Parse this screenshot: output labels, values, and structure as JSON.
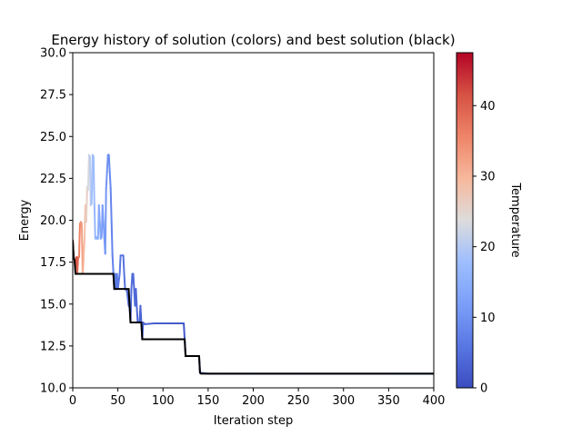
{
  "chart_data": {
    "type": "line",
    "title": "Energy history of solution (colors) and best solution (black)",
    "xlabel": "Iteration step",
    "ylabel": "Energy",
    "xlim": [
      0,
      400
    ],
    "ylim": [
      10.0,
      30.0
    ],
    "xticks": [
      "0",
      "50",
      "100",
      "150",
      "200",
      "250",
      "300",
      "350",
      "400"
    ],
    "yticks": [
      "10.0",
      "12.5",
      "15.0",
      "17.5",
      "20.0",
      "22.5",
      "25.0",
      "27.5",
      "30.0"
    ],
    "grid": false,
    "colorbar": {
      "label": "Temperature",
      "range": [
        0,
        47.5
      ],
      "ticks": [
        "0",
        "10",
        "20",
        "30",
        "40"
      ],
      "colormap": "coolwarm"
    },
    "series": [
      {
        "color_by": "Temperature",
        "points": [
          [
            0,
            18.8,
            47.5
          ],
          [
            1,
            17.8,
            46
          ],
          [
            2,
            17.6,
            44
          ],
          [
            3,
            17.2,
            43
          ],
          [
            4,
            17.8,
            42
          ],
          [
            5,
            16.8,
            40
          ],
          [
            6,
            17.8,
            38
          ],
          [
            7,
            17.8,
            37
          ],
          [
            8,
            19.8,
            35
          ],
          [
            9,
            19.9,
            34
          ],
          [
            10,
            19.8,
            33
          ],
          [
            11,
            16.8,
            32
          ],
          [
            12,
            17.8,
            30
          ],
          [
            13,
            18.8,
            29
          ],
          [
            14,
            20.9,
            28
          ],
          [
            15,
            19.9,
            27
          ],
          [
            16,
            22.0,
            25
          ],
          [
            17,
            21.8,
            24
          ],
          [
            18,
            23.9,
            22
          ],
          [
            19,
            23.8,
            21
          ],
          [
            20,
            20.9,
            20
          ],
          [
            21,
            21.0,
            19
          ],
          [
            22,
            23.9,
            18
          ],
          [
            23,
            23.8,
            18
          ],
          [
            24,
            20.9,
            17
          ],
          [
            25,
            18.9,
            16
          ],
          [
            26,
            19.0,
            16
          ],
          [
            27,
            18.9,
            15
          ],
          [
            28,
            18.9,
            15
          ],
          [
            29,
            20.9,
            14
          ],
          [
            30,
            19.9,
            14
          ],
          [
            31,
            18.9,
            13
          ],
          [
            32,
            19.0,
            13
          ],
          [
            33,
            20.9,
            12
          ],
          [
            34,
            19.9,
            12
          ],
          [
            35,
            18.9,
            11.5
          ],
          [
            36,
            18.0,
            11
          ],
          [
            37,
            21.9,
            10.5
          ],
          [
            38,
            22.9,
            10
          ],
          [
            39,
            23.9,
            9.5
          ],
          [
            40,
            23.9,
            9
          ],
          [
            41,
            22.9,
            8.7
          ],
          [
            42,
            21.9,
            8.4
          ],
          [
            43,
            19.9,
            8
          ],
          [
            44,
            17.9,
            7.7
          ],
          [
            45,
            16.9,
            7.4
          ],
          [
            46,
            15.9,
            7
          ],
          [
            47,
            16.8,
            6.8
          ],
          [
            48,
            15.9,
            6.6
          ],
          [
            49,
            16.8,
            6.4
          ],
          [
            50,
            15.9,
            6.2
          ],
          [
            52,
            16.8,
            6
          ],
          [
            53,
            17.9,
            5.8
          ],
          [
            56,
            17.9,
            5.6
          ],
          [
            57,
            16.8,
            5.4
          ],
          [
            58,
            15.9,
            5.2
          ],
          [
            60,
            15.8,
            5
          ],
          [
            62,
            14.9,
            4.8
          ],
          [
            63,
            14.8,
            4.6
          ],
          [
            64,
            13.9,
            4.5
          ],
          [
            65,
            15.9,
            4.4
          ],
          [
            66,
            16.8,
            4.3
          ],
          [
            67,
            16.8,
            4.2
          ],
          [
            68,
            15.9,
            4.1
          ],
          [
            69,
            14.9,
            4
          ],
          [
            70,
            15.9,
            3.9
          ],
          [
            71,
            14.8,
            3.8
          ],
          [
            72,
            13.9,
            3.7
          ],
          [
            74,
            13.9,
            3.6
          ],
          [
            75,
            14.9,
            3.5
          ],
          [
            76,
            13.9,
            3.4
          ],
          [
            77,
            12.9,
            3.3
          ],
          [
            78,
            13.9,
            3.2
          ],
          [
            80,
            13.8,
            3.1
          ],
          [
            90,
            13.85,
            2.8
          ],
          [
            100,
            13.85,
            2.4
          ],
          [
            110,
            13.85,
            2.1
          ],
          [
            120,
            13.85,
            1.8
          ],
          [
            123,
            13.85,
            1.7
          ],
          [
            124,
            12.9,
            1.65
          ],
          [
            125,
            11.9,
            1.6
          ],
          [
            126,
            11.9,
            1.6
          ],
          [
            130,
            11.9,
            1.5
          ],
          [
            140,
            11.9,
            1.3
          ],
          [
            141,
            10.9,
            1.25
          ],
          [
            150,
            10.85,
            1.1
          ],
          [
            175,
            10.85,
            0.8
          ],
          [
            200,
            10.85,
            0.6
          ],
          [
            250,
            10.85,
            0.35
          ],
          [
            300,
            10.85,
            0.2
          ],
          [
            350,
            10.85,
            0.1
          ],
          [
            400,
            10.85,
            0.05
          ]
        ]
      },
      {
        "name_on_chart": "best solution (black)",
        "color": "#000000",
        "points": [
          [
            0,
            18.8
          ],
          [
            1,
            17.8
          ],
          [
            2,
            17.6
          ],
          [
            3,
            16.8
          ],
          [
            45,
            16.8
          ],
          [
            46,
            15.9
          ],
          [
            62,
            15.9
          ],
          [
            63,
            14.9
          ],
          [
            64,
            13.9
          ],
          [
            76,
            13.9
          ],
          [
            77,
            12.9
          ],
          [
            124,
            12.9
          ],
          [
            125,
            11.9
          ],
          [
            140,
            11.9
          ],
          [
            141,
            10.9
          ],
          [
            142,
            10.85
          ],
          [
            400,
            10.85
          ]
        ]
      }
    ]
  }
}
